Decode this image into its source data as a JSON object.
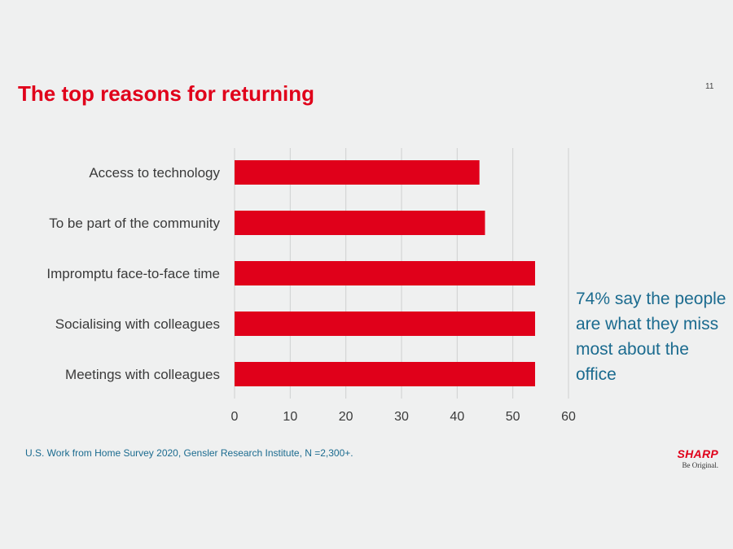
{
  "slide": {
    "title": "The top reasons for returning",
    "page_number": "11",
    "callout": "74% say the people are what they miss most about the office",
    "source": "U.S. Work from Home Survey 2020, Gensler Research Institute, N =2,300+.",
    "brand": {
      "name": "SHARP",
      "tagline": "Be Original."
    }
  },
  "colors": {
    "title": "#e0001a",
    "bar": "#e0001a",
    "callout": "#1b6b8f",
    "background": "#eff0f0"
  },
  "chart_data": {
    "type": "bar",
    "orientation": "horizontal",
    "categories": [
      "Access to technology",
      "To be part of the community",
      "Impromptu face-to-face time",
      "Socialising with colleagues",
      "Meetings with colleagues"
    ],
    "values": [
      44,
      45,
      54,
      54,
      54
    ],
    "xlim": [
      0,
      60
    ],
    "xticks": [
      0,
      10,
      20,
      30,
      40,
      50,
      60
    ],
    "grid": "vertical",
    "legend": "none"
  }
}
